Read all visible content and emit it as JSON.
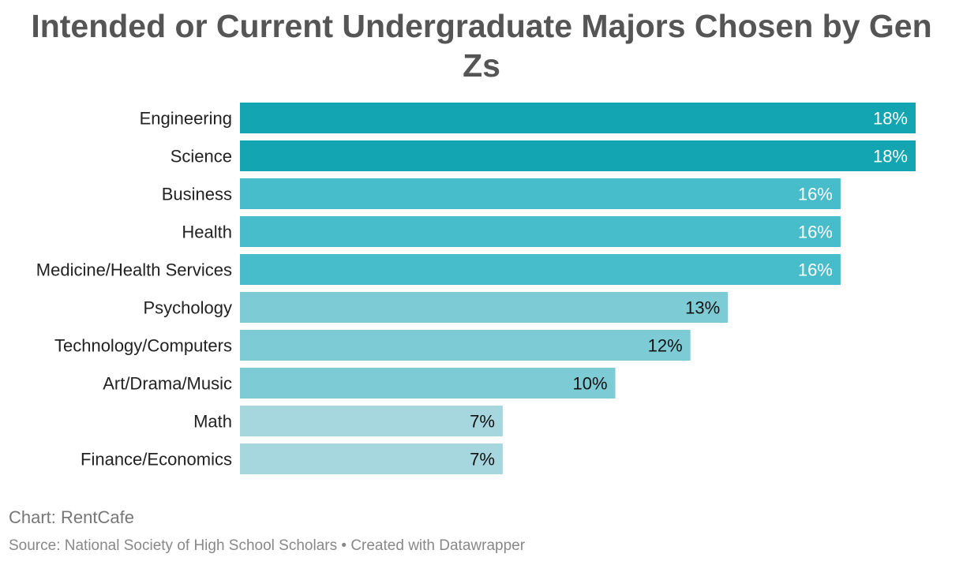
{
  "title": "Intended or Current Undergraduate Majors Chosen by Gen Zs",
  "footer": {
    "chart_credit": "Chart: RentCafe",
    "source": "Source: National Society of High School Scholars • Created with Datawrapper"
  },
  "chart_data": {
    "type": "bar",
    "orientation": "horizontal",
    "title": "Intended or Current Undergraduate Majors Chosen by Gen Zs",
    "xlim": [
      0,
      18
    ],
    "categories": [
      "Engineering",
      "Science",
      "Business",
      "Health",
      "Medicine/Health Services",
      "Psychology",
      "Technology/Computers",
      "Art/Drama/Music",
      "Math",
      "Finance/Economics"
    ],
    "values": [
      18,
      18,
      16,
      16,
      16,
      13,
      12,
      10,
      7,
      7
    ],
    "value_labels": [
      "18%",
      "18%",
      "16%",
      "16%",
      "16%",
      "13%",
      "12%",
      "10%",
      "7%",
      "7%"
    ],
    "colors": [
      "#14a5b3",
      "#14a5b3",
      "#47bccb",
      "#47bccb",
      "#47bccb",
      "#7dcbd5",
      "#7dcbd5",
      "#7dcbd5",
      "#a6d7de",
      "#a6d7de"
    ],
    "label_colors": [
      "#ffffff",
      "#ffffff",
      "#ffffff",
      "#ffffff",
      "#ffffff",
      "#111111",
      "#111111",
      "#111111",
      "#111111",
      "#111111"
    ],
    "grid": false,
    "legend": "none"
  }
}
